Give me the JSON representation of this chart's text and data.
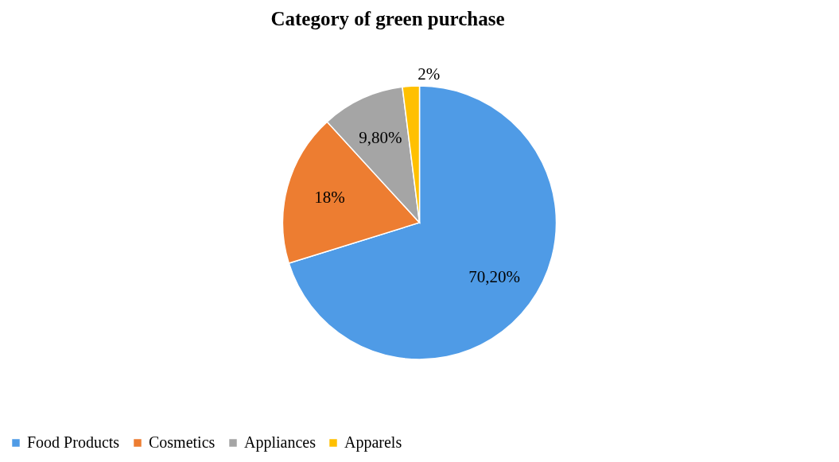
{
  "chart_data": {
    "type": "pie",
    "title": "Category of green purchase",
    "categories": [
      "Food Products",
      "Cosmetics",
      "Appliances",
      "Apparels"
    ],
    "values": [
      70.2,
      18,
      9.8,
      2
    ],
    "value_labels": [
      "70,20%",
      "18%",
      "9,80%",
      "2%"
    ],
    "colors": [
      "#4f9be6",
      "#ed7d31",
      "#a5a5a5",
      "#ffc000"
    ],
    "legend": "bottom"
  }
}
